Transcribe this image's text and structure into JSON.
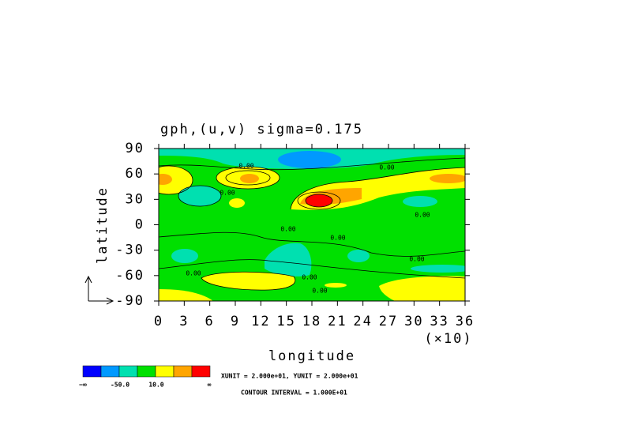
{
  "chart_data": {
    "type": "contour",
    "title": "gph,(u,v) sigma=0.175",
    "x_label": "longitude",
    "x_unit_label": "(×10)",
    "y_label": "latitude",
    "xlim": [
      0,
      36
    ],
    "xticks": [
      0,
      3,
      6,
      9,
      12,
      15,
      18,
      21,
      24,
      27,
      30,
      33,
      36
    ],
    "ylim": [
      -90,
      90
    ],
    "yticks": [
      90,
      60,
      30,
      0,
      -30,
      -60,
      -90
    ],
    "contour_labels": [
      "0.00",
      "0.00",
      "0.00",
      "0.00",
      "0.00",
      "0.00",
      "0.00",
      "0.00",
      "0.00",
      "0.00"
    ],
    "colorbar": {
      "colors": [
        "#0000ff",
        "#0099ff",
        "#00e0b0",
        "#00e000",
        "#ffff00",
        "#ffa500",
        "#ff0000"
      ],
      "labels": [
        "−∞",
        "-50.0",
        "10.0",
        "∞"
      ]
    },
    "vector_units": "XUNIT = 2.000e+01, YUNIT = 2.000e+01",
    "contour_interval": "CONTOUR INTERVAL = 1.000E+01"
  }
}
